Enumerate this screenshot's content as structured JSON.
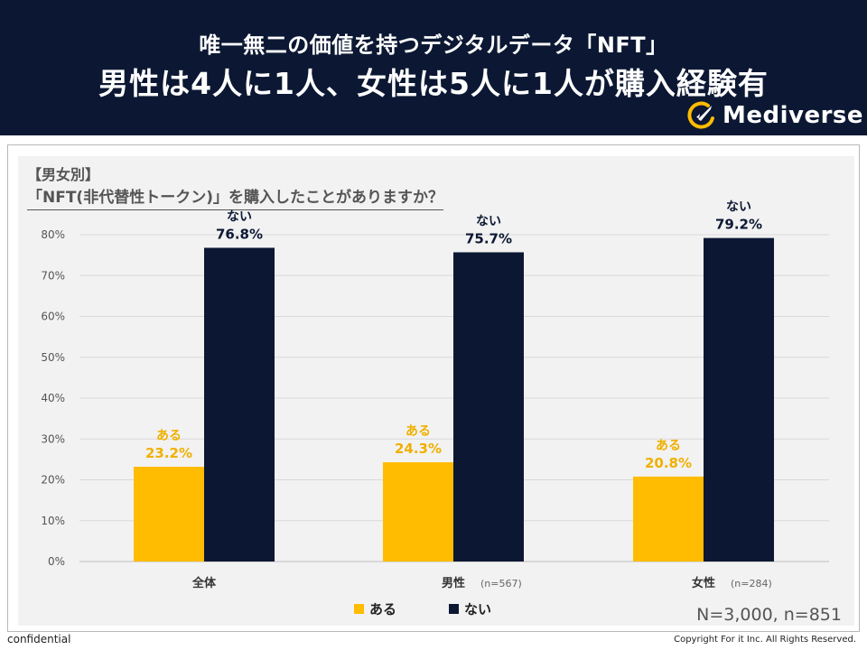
{
  "header": {
    "subtitle": "唯一無二の価値を持つデジタルデータ「NFT」",
    "title": "男性は4人に1人、女性は5人に1人が購入経験有",
    "brand": "Mediverse"
  },
  "colors": {
    "header_bg": "#0c1833",
    "aru": "#ffbc00",
    "nai": "#0c1833",
    "grid": "#d9d9d9",
    "axis_text": "#555555"
  },
  "chart_data": {
    "type": "bar",
    "tag": "【男女別】",
    "title": "「NFT(非代替性トークン)」を購入したことがありますか？",
    "categories": [
      "全体",
      "男性",
      "女性"
    ],
    "category_notes": [
      "",
      "(n=567)",
      "(n=284)"
    ],
    "series": [
      {
        "name": "ある",
        "values": [
          23.2,
          24.3,
          20.8
        ],
        "labels": [
          "23.2%",
          "24.3%",
          "20.8%"
        ]
      },
      {
        "name": "ない",
        "values": [
          76.8,
          75.7,
          79.2
        ],
        "labels": [
          "76.8%",
          "75.7%",
          "79.2%"
        ]
      }
    ],
    "yticks": [
      "0%",
      "10%",
      "20%",
      "30%",
      "40%",
      "50%",
      "60%",
      "70%",
      "80%"
    ],
    "ylim": [
      0,
      80
    ],
    "grid": true,
    "legend": "bottom-center"
  },
  "sample_size": "N=3,000,  n=851",
  "footer": {
    "confidential": "confidential",
    "copyright": "Copyright For it Inc. All Rights Reserved."
  }
}
